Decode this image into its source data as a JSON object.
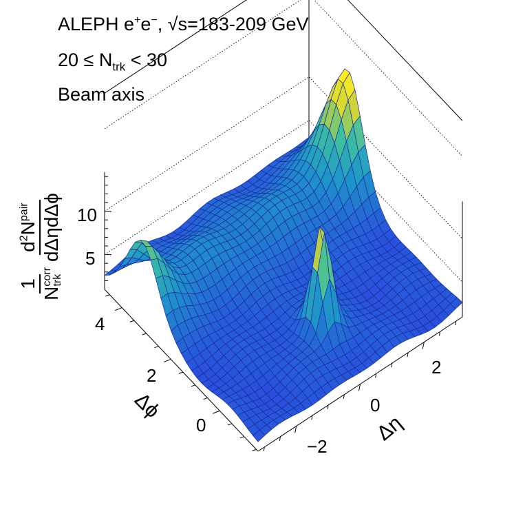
{
  "chart_data": {
    "type": "surface",
    "title_lines": [
      {
        "main": "ALEPH e",
        "sup1": "+",
        "mid": "e",
        "sup2": "−",
        "rest": ",  √s=183-209 GeV"
      },
      {
        "pre": "20 ≤ N",
        "sub": "trk",
        "post": " < 30"
      },
      {
        "text": "Beam axis"
      }
    ],
    "zlabel": {
      "lead": "1",
      "n": "N",
      "n_sub": "trk",
      "n_sup": "corr",
      "num": "d",
      "num_sup": "2",
      "num_n": "N",
      "num_n_sup": "pair",
      "den": "dΔηdΔϕ"
    },
    "xlabel": "Δη",
    "ylabel": "Δϕ",
    "x_ticks": [
      "−2",
      "0",
      "2"
    ],
    "y_ticks": [
      "0",
      "2",
      "4"
    ],
    "z_ticks": [
      "5",
      "10"
    ],
    "xlim": [
      -3.2,
      3.2
    ],
    "ylim": [
      -1.57,
      4.71
    ],
    "zlim": [
      1,
      17
    ],
    "features": [
      {
        "name": "near-side peak",
        "delta_eta": 0,
        "delta_phi": 0,
        "height": 13.5
      },
      {
        "name": "away-side ridge",
        "delta_phi": 3.14,
        "plateau": 5.5
      },
      {
        "name": "away-side peak at positive eta edge",
        "delta_eta": 3.2,
        "delta_phi": 3.14,
        "height": 15.5
      },
      {
        "name": "away-side peak at negative eta edge",
        "delta_eta": -3.2,
        "delta_phi": 3.14,
        "height": 10.5
      },
      {
        "name": "baseline",
        "height": 2.3
      }
    ]
  }
}
